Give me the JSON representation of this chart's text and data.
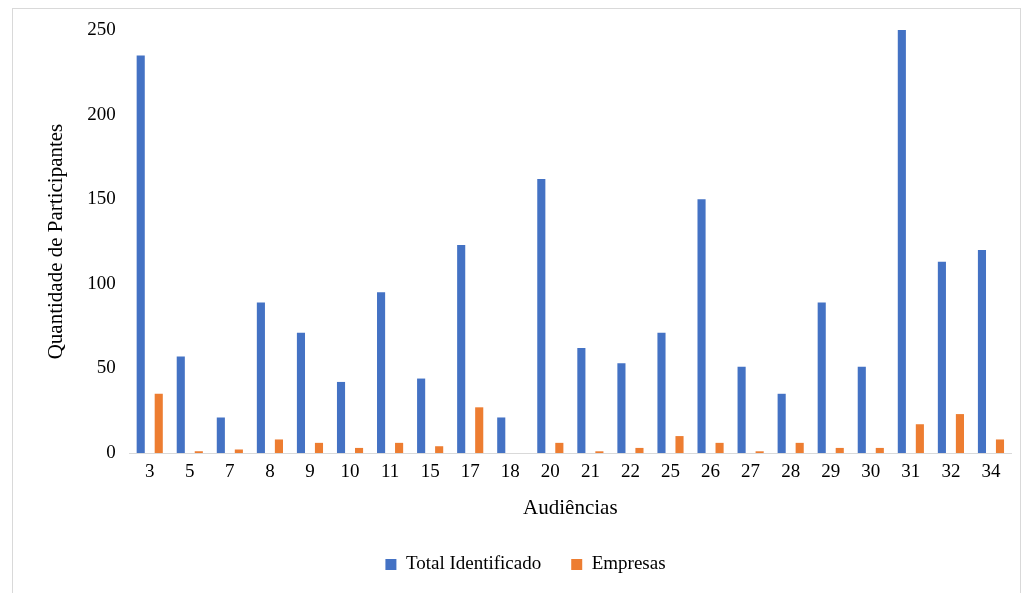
{
  "chart_data": {
    "type": "bar",
    "xlabel": "Audiências",
    "ylabel": "Quantidade de Participantes",
    "categories": [
      "3",
      "5",
      "7",
      "8",
      "9",
      "10",
      "11",
      "15",
      "17",
      "18",
      "20",
      "21",
      "22",
      "25",
      "26",
      "27",
      "28",
      "29",
      "30",
      "31",
      "32",
      "34"
    ],
    "series": [
      {
        "name": "Total Identificado",
        "color": "#4472c4",
        "values": [
          235,
          57,
          21,
          89,
          71,
          42,
          95,
          44,
          123,
          21,
          162,
          62,
          53,
          71,
          150,
          51,
          35,
          89,
          51,
          250,
          113,
          120
        ]
      },
      {
        "name": "Empresas",
        "color": "#ed7d31",
        "values": [
          35,
          1,
          2,
          8,
          6,
          3,
          6,
          4,
          27,
          0,
          6,
          1,
          3,
          10,
          6,
          1,
          6,
          3,
          3,
          17,
          23,
          8
        ]
      }
    ],
    "ylim": [
      0,
      250
    ],
    "yticks": [
      0,
      50,
      100,
      150,
      200,
      250
    ],
    "grid": false,
    "legend": "bottom"
  }
}
